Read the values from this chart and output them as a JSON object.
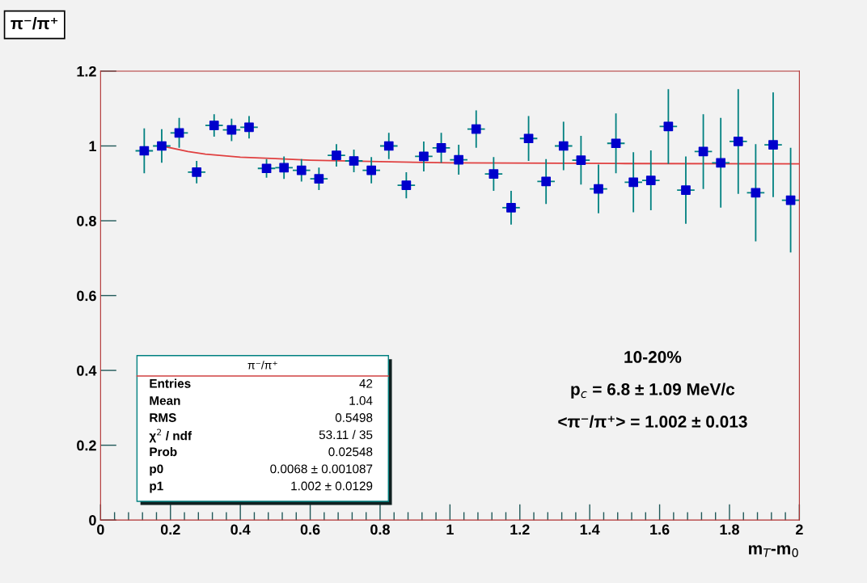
{
  "chart_data": {
    "type": "scatter",
    "title": "π⁻/π⁺",
    "xlabel": "m$_{T}$-m$_{0}$",
    "xlim": [
      0,
      2
    ],
    "ylim": [
      0,
      1.2
    ],
    "xticks": [
      0,
      0.2,
      0.4,
      0.6,
      0.8,
      1,
      1.2,
      1.4,
      1.6,
      1.8,
      2
    ],
    "yticks": [
      0,
      0.2,
      0.4,
      0.6,
      0.8,
      1,
      1.2
    ],
    "grid": false,
    "legend": false,
    "marker": "square",
    "series": [
      {
        "color": "#0000cc",
        "x": [
          0.125,
          0.175,
          0.225,
          0.275,
          0.325,
          0.375,
          0.425,
          0.475,
          0.525,
          0.575,
          0.625,
          0.675,
          0.725,
          0.775,
          0.825,
          0.875,
          0.925,
          0.975,
          1.025,
          1.075,
          1.125,
          1.175,
          1.225,
          1.275,
          1.325,
          1.375,
          1.425,
          1.475,
          1.525,
          1.575,
          1.625,
          1.675,
          1.725,
          1.775,
          1.825,
          1.875,
          1.925,
          1.975
        ],
        "values": [
          0.987,
          1.0,
          1.035,
          0.93,
          1.055,
          1.043,
          1.05,
          0.94,
          0.942,
          0.935,
          0.912,
          0.975,
          0.96,
          0.935,
          1.0,
          0.895,
          0.972,
          0.995,
          0.963,
          1.045,
          0.925,
          0.835,
          1.02,
          0.905,
          1.0,
          0.962,
          0.885,
          1.007,
          0.903,
          0.908,
          1.052,
          0.882,
          0.985,
          0.955,
          1.012,
          0.875,
          1.003,
          0.855
        ],
        "errors": [
          0.06,
          0.045,
          0.04,
          0.03,
          0.03,
          0.03,
          0.03,
          0.025,
          0.03,
          0.03,
          0.03,
          0.03,
          0.03,
          0.035,
          0.035,
          0.035,
          0.04,
          0.04,
          0.04,
          0.05,
          0.045,
          0.045,
          0.06,
          0.06,
          0.065,
          0.065,
          0.065,
          0.08,
          0.08,
          0.08,
          0.1,
          0.09,
          0.1,
          0.12,
          0.14,
          0.13,
          0.14,
          0.14
        ],
        "xerrors": [
          0.025,
          0.025,
          0.025,
          0.025,
          0.025,
          0.025,
          0.025,
          0.025,
          0.025,
          0.025,
          0.025,
          0.025,
          0.025,
          0.025,
          0.025,
          0.025,
          0.025,
          0.025,
          0.025,
          0.025,
          0.025,
          0.025,
          0.025,
          0.025,
          0.025,
          0.025,
          0.025,
          0.025,
          0.025,
          0.025,
          0.025,
          0.025,
          0.025,
          0.025,
          0.025,
          0.025,
          0.025,
          0.025
        ]
      },
      {
        "type": "line",
        "color": "#e04040",
        "marker": "none",
        "x": [
          0.175,
          0.25,
          0.3,
          0.4,
          0.5,
          0.6,
          0.8,
          1.0,
          1.5,
          2.0
        ],
        "values": [
          1.0,
          0.985,
          0.978,
          0.97,
          0.966,
          0.962,
          0.958,
          0.955,
          0.953,
          0.952
        ]
      }
    ],
    "annotations": [
      "π⁻/π⁺",
      "Entries",
      "42",
      "Mean",
      "1.04",
      "RMS",
      "0.5498",
      "χ$^{2}$ / ndf",
      "53.11 / 35",
      "Prob",
      "0.02548",
      "p0",
      "0.0068 ± 0.001087",
      "p1",
      "1.002 ± 0.0129",
      "10-20%",
      "p$_{c}$ = 6.8 ± 1.09 MeV/c",
      "<π⁻/π⁺> = 1.002 ± 0.013"
    ]
  }
}
